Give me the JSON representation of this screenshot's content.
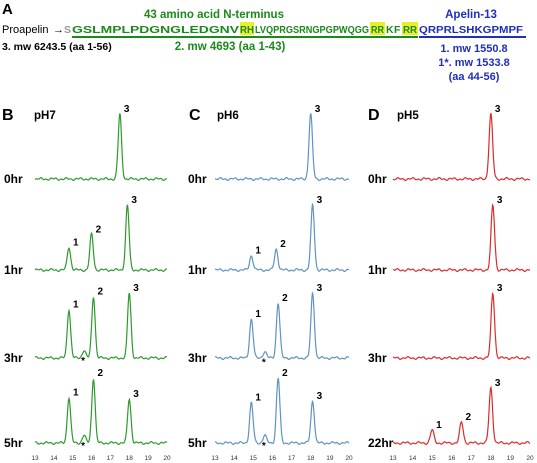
{
  "header": {
    "panel_letter": "A",
    "prefix_label": "Proapelin",
    "arrow": "→",
    "seq_s": "S",
    "seq_green_1": "GSLMPLPDGNGLEDGNV",
    "seq_rh": "RH",
    "seq_green_2": "LVQPRGSRNGPGPWQGG",
    "seq_rr1": "RR",
    "seq_k": "K",
    "seq_f": "F",
    "seq_rr2": "RR",
    "seq_blue": "QRPRLSHKGPMPF",
    "green_title": "43 amino acid N-terminus",
    "blue_title": "Apelin-13",
    "label_3": "3. mw 6243.5 (aa 1-56)",
    "label_2": "2. mw 4693 (aa 1-43)",
    "label_1": "1. mw 1550.8",
    "label_1star": "1*. mw 1533.8",
    "label_1_range": "(aa 44-56)"
  },
  "colors": {
    "green": "#1a8a1a",
    "blue": "#1f2fb8",
    "highlight": "#e8f028",
    "trace_ph7": "#2e9a2e",
    "trace_ph6": "#5f93c3",
    "trace_ph5": "#dc2b2b",
    "grey": "#9a9a9a"
  },
  "chart_data": [
    {
      "type": "line",
      "panel": "B",
      "title": "pH7",
      "x_ticks": [
        13,
        14,
        15,
        16,
        17,
        18,
        19,
        20
      ],
      "xlim": [
        13,
        20
      ],
      "rows": [
        {
          "label": "0hr",
          "peaks": [
            {
              "x": 17.5,
              "h": 1.0,
              "label": "3"
            }
          ]
        },
        {
          "label": "1hr",
          "peaks": [
            {
              "x": 14.8,
              "h": 0.35,
              "label": "1"
            },
            {
              "x": 16.0,
              "h": 0.55,
              "label": "2"
            },
            {
              "x": 17.9,
              "h": 1.0,
              "label": "3"
            }
          ]
        },
        {
          "label": "3hr",
          "peaks": [
            {
              "x": 14.8,
              "h": 0.75,
              "label": "1"
            },
            {
              "x": 15.6,
              "h": 0.12,
              "label": "*"
            },
            {
              "x": 16.1,
              "h": 0.95,
              "label": "2"
            },
            {
              "x": 18.0,
              "h": 1.0,
              "label": "3"
            }
          ]
        },
        {
          "label": "5hr",
          "peaks": [
            {
              "x": 14.8,
              "h": 0.7,
              "label": "1"
            },
            {
              "x": 15.6,
              "h": 0.12,
              "label": "*"
            },
            {
              "x": 16.1,
              "h": 1.0,
              "label": "2"
            },
            {
              "x": 18.0,
              "h": 0.68,
              "label": "3"
            }
          ]
        }
      ]
    },
    {
      "type": "line",
      "panel": "C",
      "title": "pH6",
      "x_ticks": [
        13,
        14,
        15,
        16,
        17,
        18,
        19,
        20
      ],
      "xlim": [
        13,
        20
      ],
      "rows": [
        {
          "label": "0hr",
          "peaks": [
            {
              "x": 18.0,
              "h": 1.0,
              "label": "3"
            }
          ]
        },
        {
          "label": "1hr",
          "peaks": [
            {
              "x": 14.9,
              "h": 0.22,
              "label": "1"
            },
            {
              "x": 16.2,
              "h": 0.32,
              "label": "2"
            },
            {
              "x": 18.1,
              "h": 1.0,
              "label": "3"
            }
          ]
        },
        {
          "label": "3hr",
          "peaks": [
            {
              "x": 14.9,
              "h": 0.6,
              "label": "1"
            },
            {
              "x": 15.6,
              "h": 0.1,
              "label": "*"
            },
            {
              "x": 16.3,
              "h": 0.85,
              "label": "2"
            },
            {
              "x": 18.1,
              "h": 1.0,
              "label": "3"
            }
          ]
        },
        {
          "label": "5hr",
          "peaks": [
            {
              "x": 14.9,
              "h": 0.62,
              "label": "1"
            },
            {
              "x": 15.6,
              "h": 0.12,
              "label": "*"
            },
            {
              "x": 16.3,
              "h": 1.0,
              "label": "2"
            },
            {
              "x": 18.1,
              "h": 0.65,
              "label": "3"
            }
          ]
        }
      ]
    },
    {
      "type": "line",
      "panel": "D",
      "title": "pH5",
      "x_ticks": [
        13,
        14,
        15,
        16,
        17,
        18,
        19,
        20
      ],
      "xlim": [
        13,
        20
      ],
      "rows": [
        {
          "label": "0hr",
          "peaks": [
            {
              "x": 18.0,
              "h": 1.0,
              "label": "3"
            }
          ]
        },
        {
          "label": "1hr",
          "peaks": [
            {
              "x": 18.1,
              "h": 1.0,
              "label": "3"
            }
          ]
        },
        {
          "label": "3hr",
          "peaks": [
            {
              "x": 18.1,
              "h": 1.0,
              "label": "3"
            }
          ]
        },
        {
          "label": "22hr",
          "peaks": [
            {
              "x": 15.0,
              "h": 0.2,
              "label": "1"
            },
            {
              "x": 16.5,
              "h": 0.32,
              "label": "2"
            },
            {
              "x": 18.0,
              "h": 0.85,
              "label": "3"
            }
          ]
        }
      ]
    }
  ]
}
